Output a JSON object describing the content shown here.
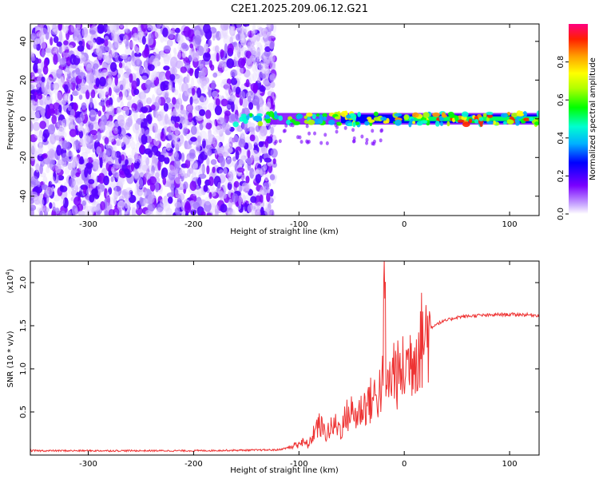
{
  "title": "C2E1.2025.209.06.12.G21",
  "chart_data": [
    {
      "type": "heatmap",
      "xlabel": "Height of straight line (km)",
      "ylabel": "Frequency (Hz)",
      "xlim": [
        -355,
        128
      ],
      "ylim": [
        -50,
        49
      ],
      "x_ticks": [
        -300,
        -200,
        -100,
        0,
        100
      ],
      "y_ticks": [
        -40,
        -20,
        0,
        20,
        40
      ],
      "colorbar": {
        "label": "Normalized spectral amplitude",
        "range": [
          0,
          1
        ],
        "ticks": [
          "0.0",
          "0.2",
          "0.4",
          "0.6",
          "0.8"
        ],
        "colormap": [
          "#ffffff",
          "#c9a8ff",
          "#7a00ff",
          "#0000ff",
          "#00b0ff",
          "#00ffd0",
          "#00ff00",
          "#b0ff00",
          "#ffff00",
          "#ffa000",
          "#ff2000",
          "#ff0080"
        ]
      },
      "regions": [
        {
          "x_range": [
            -355,
            -123
          ],
          "freq_range": [
            -50,
            49
          ],
          "description_values": "scattered noise, amplitude 0.05-0.3"
        },
        {
          "x_range": [
            -160,
            128
          ],
          "freq_center": 0,
          "freq_halfwidth": 3,
          "description_values": "carrier line, amplitude 0.3-1.0"
        }
      ]
    },
    {
      "type": "line",
      "xlabel": "Height of straight line (km)",
      "ylabel": "SNR (10 * v/v)",
      "y_multiplier": "(x10",
      "y_multiplier_exp": "4",
      "y_multiplier_close": ")",
      "xlim": [
        -355,
        128
      ],
      "ylim": [
        0,
        2.25
      ],
      "x_ticks": [
        -300,
        -200,
        -100,
        0,
        100
      ],
      "y_ticks": [
        "0.5",
        "1.0",
        "1.5",
        "2.0"
      ],
      "y_tick_values": [
        0.5,
        1.0,
        1.5,
        2.0
      ],
      "series": [
        {
          "color": "#ee3333",
          "x": [
            -355,
            -200,
            -120,
            -105,
            -100,
            -90,
            -85,
            -80,
            -75,
            -70,
            -65,
            -60,
            -55,
            -50,
            -45,
            -40,
            -35,
            -30,
            -25,
            -20,
            -19,
            -17,
            -15,
            -10,
            -5,
            0,
            5,
            10,
            15,
            20,
            25,
            30,
            40,
            50,
            60,
            70,
            80,
            90,
            100,
            110,
            128
          ],
          "y": [
            0.05,
            0.05,
            0.06,
            0.1,
            0.15,
            0.12,
            0.3,
            0.35,
            0.25,
            0.3,
            0.35,
            0.3,
            0.45,
            0.5,
            0.45,
            0.55,
            0.6,
            0.65,
            0.7,
            0.85,
            2.25,
            0.7,
            0.8,
            1.0,
            0.9,
            1.0,
            1.1,
            1.2,
            1.3,
            1.4,
            1.47,
            1.52,
            1.56,
            1.6,
            1.61,
            1.62,
            1.62,
            1.63,
            1.63,
            1.63,
            1.62
          ]
        }
      ]
    }
  ]
}
